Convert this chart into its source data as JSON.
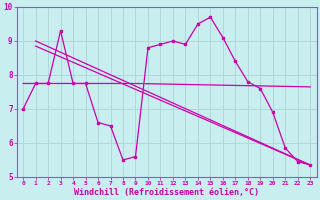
{
  "background_color": "#c8eef0",
  "grid_color": "#b0d8da",
  "line_color": "#cc00aa",
  "spine_color": "#7070a0",
  "xlim": [
    -0.5,
    23.5
  ],
  "ylim": [
    5,
    10
  ],
  "xlabel": "Windchill (Refroidissement éolien,°C)",
  "series_main": {
    "x": [
      0,
      1,
      2,
      3,
      4,
      5,
      6,
      7,
      8,
      9,
      10,
      11,
      12,
      13,
      14,
      15,
      16,
      17,
      18,
      19,
      20,
      21,
      22,
      23
    ],
    "y": [
      7.0,
      7.75,
      7.75,
      9.3,
      7.75,
      7.75,
      6.6,
      6.5,
      5.5,
      5.6,
      8.8,
      8.9,
      9.0,
      8.9,
      9.5,
      9.7,
      9.1,
      8.4,
      7.8,
      7.6,
      6.9,
      5.85,
      5.45,
      5.35
    ]
  },
  "series_trend1": {
    "x": [
      1,
      23
    ],
    "y": [
      9.0,
      5.35
    ]
  },
  "series_trend2": {
    "x": [
      1,
      23
    ],
    "y": [
      8.85,
      5.35
    ]
  },
  "series_flat": {
    "x": [
      0,
      9,
      23
    ],
    "y": [
      7.75,
      7.75,
      7.65
    ]
  },
  "xticks": [
    0,
    1,
    2,
    3,
    4,
    5,
    6,
    7,
    8,
    9,
    10,
    11,
    12,
    13,
    14,
    15,
    16,
    17,
    18,
    19,
    20,
    21,
    22,
    23
  ],
  "yticks": [
    5,
    6,
    7,
    8,
    9,
    10
  ],
  "figsize": [
    3.2,
    2.0
  ],
  "dpi": 100
}
